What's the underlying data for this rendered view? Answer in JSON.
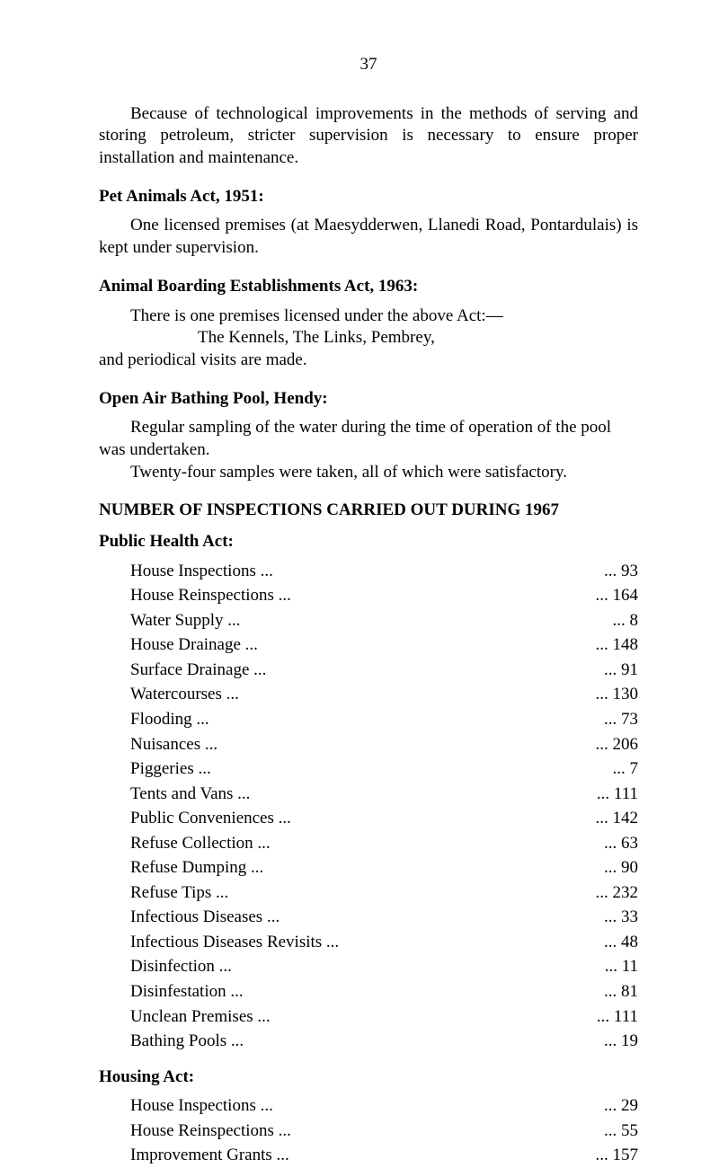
{
  "pageNumber": "37",
  "intro": "Because of technological improvements in the methods of serving and storing petroleum, stricter supervision is necessary to ensure proper installation and maintenance.",
  "sections": {
    "petAnimals": {
      "heading": "Pet Animals Act, 1951:",
      "body": "One licensed premises (at Maesydderwen, Llanedi Road, Pontardulais) is kept under supervision."
    },
    "animalBoarding": {
      "heading": "Animal Boarding Establishments Act, 1963:",
      "body1": "There is one premises licensed under the above Act:—",
      "body2": "The Kennels, The Links, Pembrey,",
      "body3": "and periodical visits are made."
    },
    "openAir": {
      "heading": "Open Air Bathing Pool, Hendy:",
      "body1": "Regular sampling of the water during the time of operation of the pool was undertaken.",
      "body2": "Twenty-four samples were taken, all of which were satisfactory."
    },
    "inspections": {
      "heading": "NUMBER OF INSPECTIONS CARRIED OUT DURING 1967",
      "publicHealthHeading": "Public Health Act:",
      "publicHealth": [
        {
          "label": "House Inspections",
          "value": "93"
        },
        {
          "label": "House Reinspections",
          "value": "164"
        },
        {
          "label": "Water Supply",
          "value": "8"
        },
        {
          "label": "House Drainage",
          "value": "148"
        },
        {
          "label": "Surface Drainage",
          "value": "91"
        },
        {
          "label": "Watercourses",
          "value": "130"
        },
        {
          "label": "Flooding",
          "value": "73"
        },
        {
          "label": "Nuisances",
          "value": "206"
        },
        {
          "label": "Piggeries",
          "value": "7"
        },
        {
          "label": "Tents and Vans",
          "value": "111"
        },
        {
          "label": "Public Conveniences",
          "value": "142"
        },
        {
          "label": "Refuse Collection",
          "value": "63"
        },
        {
          "label": "Refuse Dumping",
          "value": "90"
        },
        {
          "label": "Refuse Tips",
          "value": "232"
        },
        {
          "label": "Infectious Diseases",
          "value": "33"
        },
        {
          "label": "Infectious Diseases Revisits",
          "value": "48"
        },
        {
          "label": "Disinfection",
          "value": "11"
        },
        {
          "label": "Disinfestation",
          "value": "81"
        },
        {
          "label": "Unclean Premises",
          "value": "111"
        },
        {
          "label": "Bathing Pools",
          "value": "19"
        }
      ],
      "housingHeading": "Housing Act:",
      "housing": [
        {
          "label": "House Inspections",
          "value": "29"
        },
        {
          "label": "House Reinspections",
          "value": "55"
        },
        {
          "label": "Improvement Grants",
          "value": "157"
        }
      ]
    }
  }
}
